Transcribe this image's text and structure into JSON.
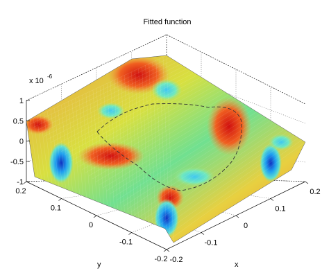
{
  "chart_data": {
    "type": "surface",
    "title": "Fitted function",
    "xlabel": "x",
    "ylabel": "y",
    "zlabel": "",
    "z_exponent_label": "x 10",
    "z_exponent": "-6",
    "x_ticks": [
      "-0.2",
      "-0.1",
      "0",
      "0.1",
      "0.2"
    ],
    "y_ticks": [
      "-0.2",
      "-0.1",
      "0",
      "0.1",
      "0.2"
    ],
    "z_ticks": [
      "-1",
      "-0.5",
      "0",
      "0.5",
      "1"
    ],
    "xlim": [
      -0.2,
      0.2
    ],
    "ylim": [
      -0.2,
      0.2
    ],
    "zlim": [
      -1,
      1
    ],
    "grid": true,
    "colormap": "jet",
    "surface_peaks": [
      {
        "x": -0.2,
        "y": 0.2,
        "z": 0.8
      },
      {
        "x": 0.2,
        "y": 0.2,
        "z": 0.6
      },
      {
        "x": 0.05,
        "y": 0.0,
        "z": 0.95
      },
      {
        "x": -0.2,
        "y": -0.2,
        "z": 0.7
      }
    ],
    "surface_troughs": [
      {
        "x": -0.12,
        "y": 0.2,
        "z": -0.9
      },
      {
        "x": 0.2,
        "y": -0.12,
        "z": -0.9
      },
      {
        "x": -0.12,
        "y": -0.2,
        "z": -1.0
      },
      {
        "x": 0.2,
        "y": 0.12,
        "z": -0.8
      }
    ]
  }
}
